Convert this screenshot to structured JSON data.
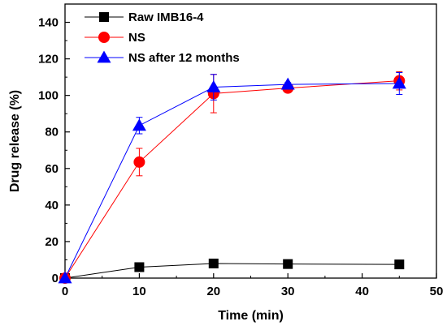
{
  "chart_data": {
    "type": "line",
    "xlabel": "Time (min)",
    "ylabel": "Drug release (%)",
    "xlim": [
      0,
      50
    ],
    "ylim": [
      0,
      150
    ],
    "xticks": [
      0,
      10,
      20,
      30,
      40,
      50
    ],
    "yticks": [
      0,
      20,
      40,
      60,
      80,
      100,
      120,
      140
    ],
    "grid": false,
    "legend_position": "top-left",
    "x": [
      0,
      10,
      20,
      30,
      45
    ],
    "series": [
      {
        "name": "Raw IMB16-4",
        "color": "#000000",
        "marker": "square",
        "values": [
          0,
          6,
          8,
          7.7,
          7.5
        ],
        "errors": [
          0,
          0.5,
          0.5,
          0.5,
          0.5
        ]
      },
      {
        "name": "NS",
        "color": "#ff0000",
        "marker": "circle",
        "values": [
          0,
          63.5,
          101,
          104,
          108
        ],
        "errors": [
          0,
          7.5,
          10.5,
          1,
          5
        ]
      },
      {
        "name": "NS after 12 months",
        "color": "#0000ff",
        "marker": "triangle",
        "values": [
          0,
          83.5,
          104.5,
          106,
          106.5
        ],
        "errors": [
          0,
          4.5,
          7,
          1,
          6
        ]
      }
    ]
  }
}
